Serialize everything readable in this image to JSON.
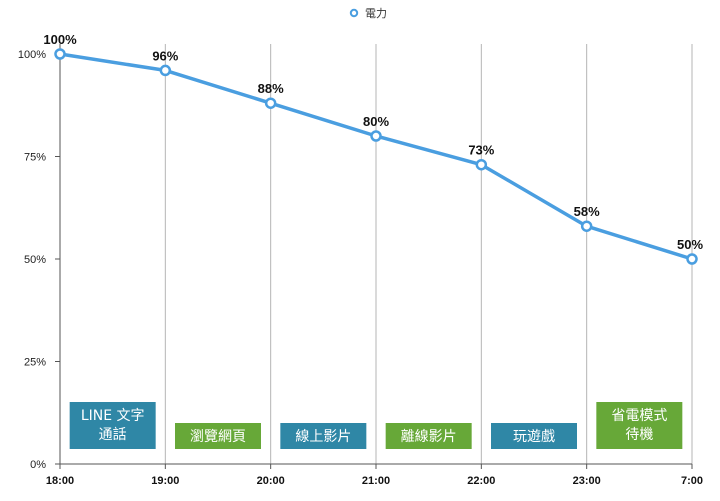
{
  "chart_data": {
    "type": "line",
    "legend": {
      "label": "電力",
      "position": "top-center",
      "marker": "hollow-circle"
    },
    "categories": [
      "18:00",
      "19:00",
      "20:00",
      "21:00",
      "22:00",
      "23:00",
      "7:00"
    ],
    "series": [
      {
        "name": "電力",
        "values": [
          100,
          96,
          88,
          80,
          73,
          58,
          50
        ],
        "color": "#4a9ee0"
      }
    ],
    "data_labels": [
      "100%",
      "96%",
      "88%",
      "80%",
      "73%",
      "58%",
      "50%"
    ],
    "y_ticks": [
      0,
      25,
      50,
      75,
      100
    ],
    "y_tick_labels": [
      "0%",
      "25%",
      "50%",
      "75%",
      "100%"
    ],
    "ylim": [
      0,
      100
    ],
    "grid": {
      "vertical": true,
      "horizontal": false
    },
    "activities": [
      {
        "lines": [
          "LINE 文字",
          "通話"
        ],
        "category_index": 0,
        "color": "#2f87a6"
      },
      {
        "lines": [
          "瀏覽網頁"
        ],
        "category_index": 1,
        "color": "#67a838"
      },
      {
        "lines": [
          "線上影片"
        ],
        "category_index": 2,
        "color": "#2f87a6"
      },
      {
        "lines": [
          "離線影片"
        ],
        "category_index": 3,
        "color": "#67a838"
      },
      {
        "lines": [
          "玩遊戲"
        ],
        "category_index": 4,
        "color": "#2f87a6"
      },
      {
        "lines": [
          "省電模式",
          "待機"
        ],
        "category_index": 5,
        "color": "#67a838"
      }
    ]
  }
}
